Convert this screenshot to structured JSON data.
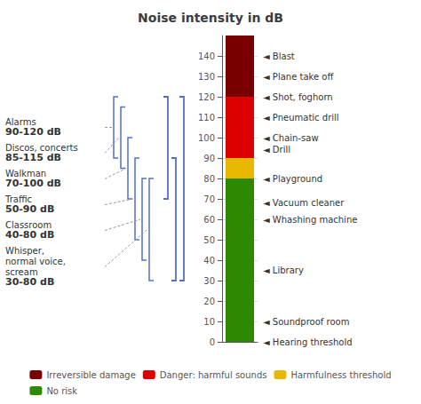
{
  "chart_data": {
    "type": "bar",
    "title": "Noise intensity in dB",
    "stacked": true,
    "categories": [
      null
    ],
    "series": [
      {
        "name": "Irreversible damage",
        "color": "#7a0000",
        "values": [
          30
        ]
      },
      {
        "name": "Danger: harmful sounds",
        "color": "#dd0000",
        "values": [
          30
        ]
      },
      {
        "name": "Harmfulness threshold",
        "color": "#e8b800",
        "values": [
          10
        ]
      },
      {
        "name": "No risk",
        "color": "#2d8a00",
        "values": [
          80
        ]
      }
    ],
    "ylim": [
      0,
      150
    ],
    "yticks": [
      0,
      10,
      20,
      30,
      40,
      50,
      60,
      70,
      80,
      90,
      100,
      110,
      120,
      130,
      140
    ],
    "grid": true,
    "legend": "bottom",
    "annotations": [
      {
        "y": 140,
        "text": "◄ Blast"
      },
      {
        "y": 130,
        "text": "◄ Plane take off"
      },
      {
        "y": 120,
        "text": "◄ Shot, foghorn"
      },
      {
        "y": 110,
        "text": "◄ Pneumatic drill"
      },
      {
        "y": 100,
        "text": "◄ Chain-saw"
      },
      {
        "y": 94,
        "text": "◄ Drill"
      },
      {
        "y": 80,
        "text": "◄ Playground"
      },
      {
        "y": 68,
        "text": "◄ Vacuum cleaner"
      },
      {
        "y": 60,
        "text": "◄ Whashing machine"
      },
      {
        "y": 35,
        "text": "◄ Library"
      },
      {
        "y": 10,
        "text": "◄ Soundproof room"
      },
      {
        "y": 0,
        "text": "◄ Hearing threshold"
      }
    ],
    "ranges": [
      {
        "label": "Alarms",
        "sublabel": "90-120 dB",
        "ymin": 90,
        "ymax": 120
      },
      {
        "label": "Discos, concerts",
        "sublabel": "85-115 dB",
        "ymin": 85,
        "ymax": 115
      },
      {
        "label": "Walkman",
        "sublabel": "70-100 dB",
        "ymin": 70,
        "ymax": 100
      },
      {
        "label": "Traffic",
        "sublabel": "50-90 dB",
        "ymin": 50,
        "ymax": 90
      },
      {
        "label": "Classroom",
        "sublabel": "40-80 dB",
        "ymin": 40,
        "ymax": 80
      },
      {
        "label": "Whisper,\nnormal voice,\nscream",
        "sublabel": "30-80 dB",
        "ymin": 30,
        "ymax": 80
      }
    ],
    "groups": [
      {
        "ymin": 70,
        "ymax": 120
      },
      {
        "ymin": 30,
        "ymax": 90
      },
      {
        "ymin": 30,
        "ymax": 120
      }
    ]
  }
}
